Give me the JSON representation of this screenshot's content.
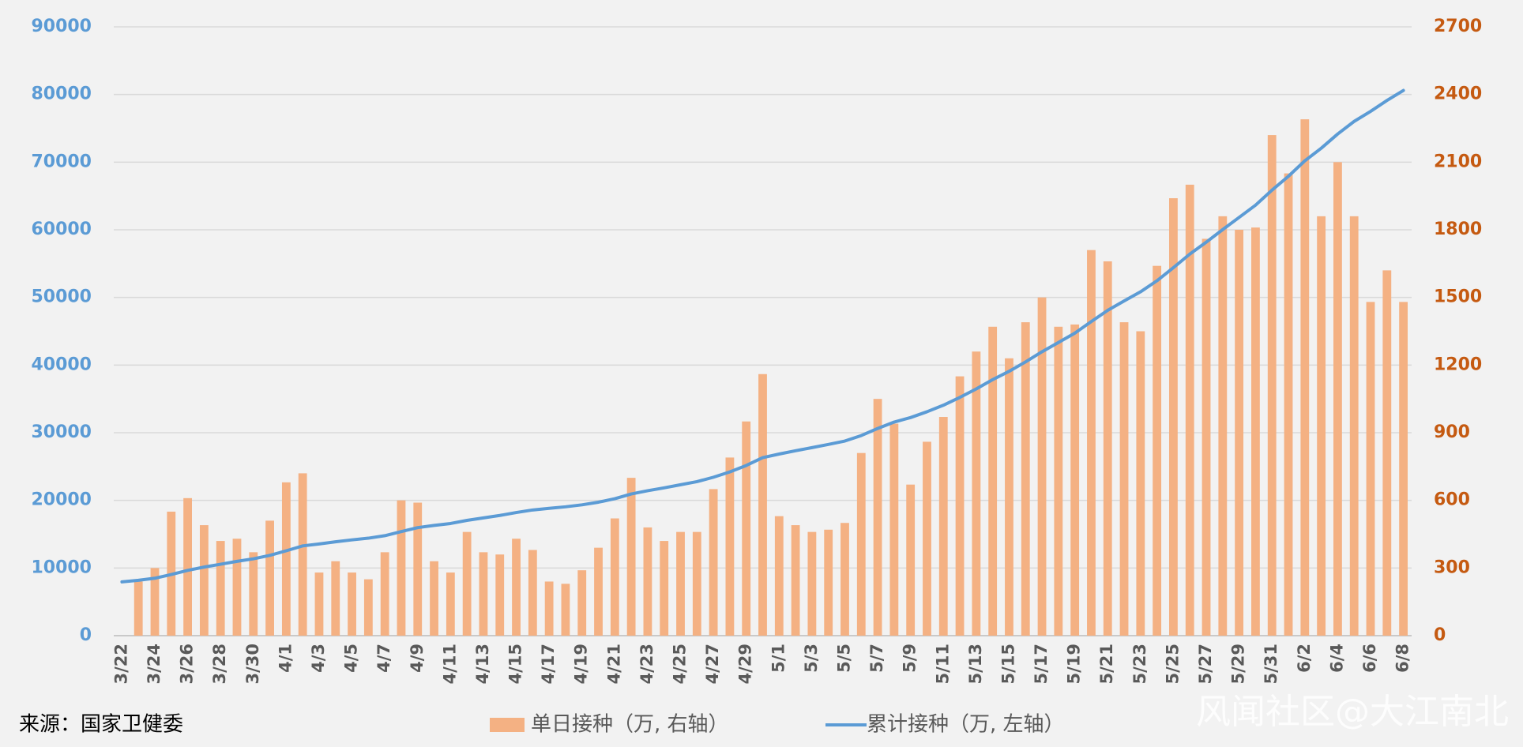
{
  "chart_data": {
    "type": "bar_line",
    "categories": [
      "3/22",
      null,
      "3/24",
      null,
      "3/26",
      null,
      "3/28",
      null,
      "3/30",
      null,
      "4/1",
      null,
      "4/3",
      null,
      "4/5",
      null,
      "4/7",
      null,
      "4/9",
      null,
      "4/11",
      null,
      "4/13",
      null,
      "4/15",
      null,
      "4/17",
      null,
      "4/19",
      null,
      "4/21",
      null,
      "4/23",
      null,
      "4/25",
      null,
      "4/27",
      null,
      "4/29",
      null,
      "5/1",
      null,
      "5/3",
      null,
      "5/5",
      null,
      "5/7",
      null,
      "5/9",
      null,
      "5/11",
      null,
      "5/13",
      null,
      "5/15",
      null,
      "5/17",
      null,
      "5/19",
      null,
      "5/21",
      null,
      "5/23",
      null,
      "5/25",
      null,
      "5/27",
      null,
      "5/29",
      null,
      "5/31",
      null,
      "6/2",
      null,
      "6/4",
      null,
      "6/6",
      null,
      "6/8"
    ],
    "series": [
      {
        "name": "单日接种（万, 右轴）",
        "type": "bar",
        "axis": "y2",
        "color": "#f4b183",
        "values": [
          null,
          240,
          300,
          550,
          610,
          490,
          420,
          430,
          370,
          510,
          680,
          720,
          280,
          330,
          280,
          250,
          370,
          600,
          590,
          330,
          280,
          460,
          370,
          360,
          430,
          380,
          240,
          230,
          290,
          390,
          520,
          700,
          480,
          420,
          460,
          460,
          650,
          790,
          950,
          1160,
          530,
          490,
          460,
          470,
          500,
          810,
          1050,
          940,
          670,
          860,
          970,
          1150,
          1260,
          1370,
          1230,
          1390,
          1500,
          1370,
          1380,
          1710,
          1660,
          1390,
          1350,
          1640,
          1940,
          2000,
          1760,
          1860,
          1800,
          1810,
          2220,
          2050,
          2290,
          1860,
          2100,
          1860,
          1480,
          1620,
          1480
        ]
      },
      {
        "name": "累计接种（万, 左轴）",
        "type": "line",
        "axis": "y",
        "color": "#5b9bd5",
        "values": [
          7950,
          8190,
          8490,
          9040,
          9650,
          10140,
          10560,
          10990,
          11360,
          11870,
          12550,
          13270,
          13550,
          13880,
          14160,
          14410,
          14780,
          15380,
          15970,
          16300,
          16580,
          17040,
          17410,
          17770,
          18200,
          18580,
          18820,
          19050,
          19340,
          19730,
          20250,
          20950,
          21430,
          21850,
          22310,
          22770,
          23420,
          24210,
          25160,
          26320,
          26850,
          27340,
          27800,
          28270,
          28770,
          29580,
          30630,
          31570,
          32240,
          33100,
          34070,
          35220,
          36480,
          37850,
          39080,
          40470,
          41970,
          43340,
          44720,
          46430,
          48090,
          49480,
          50830,
          52470,
          54410,
          56410,
          58170,
          60030,
          61830,
          63640,
          65860,
          67910,
          70200,
          72060,
          74160,
          76020,
          77500,
          79120,
          80600
        ]
      }
    ],
    "ylim": [
      0,
      90000
    ],
    "yticks": [
      0,
      10000,
      20000,
      30000,
      40000,
      50000,
      60000,
      70000,
      80000,
      90000
    ],
    "y2lim": [
      0,
      2700
    ],
    "y2ticks": [
      0,
      300,
      600,
      900,
      1200,
      1500,
      1800,
      2100,
      2400,
      2700
    ],
    "y_color": "#5b9bd5",
    "y2_color": "#c55a11",
    "grid": true,
    "legend": "bottom",
    "source": "来源：国家卫健委",
    "watermark": "风闻社区@大江南北"
  }
}
